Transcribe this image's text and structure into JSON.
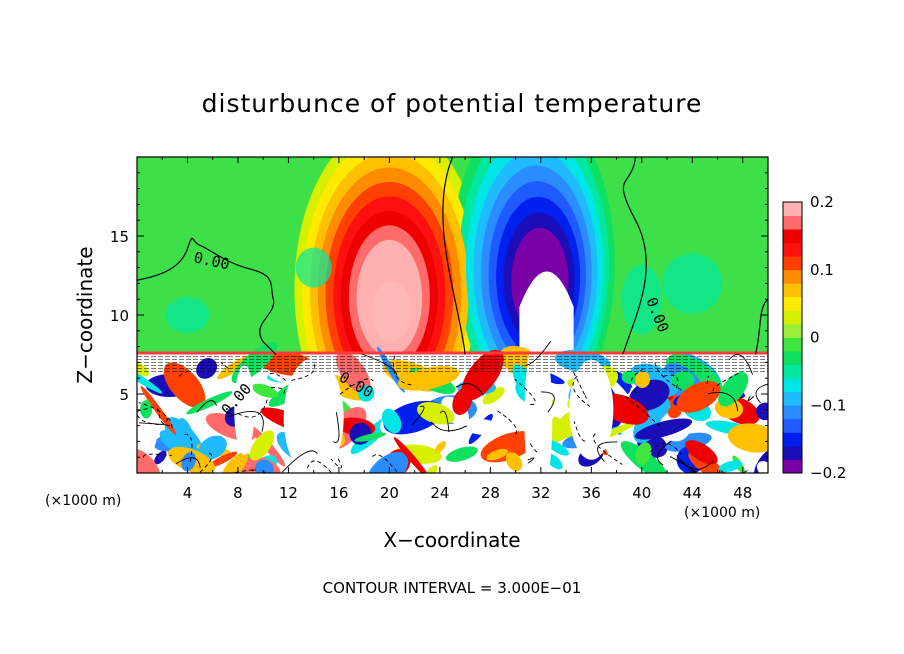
{
  "chart_data": {
    "type": "heatmap",
    "title": "disturbunce of potential temperature",
    "xlabel": "X−coordinate",
    "ylabel": "Z−coordinate",
    "x_unit_label": "(×1000 m)",
    "x_unit_label_right": "(×1000 m)",
    "xlim": [
      0,
      50
    ],
    "ylim": [
      0,
      20
    ],
    "x_ticks": [
      4,
      8,
      12,
      16,
      20,
      24,
      28,
      32,
      36,
      40,
      44,
      48
    ],
    "y_ticks": [
      5,
      10,
      15
    ],
    "footer": "CONTOUR INTERVAL = 3.000E−01",
    "colorbar": {
      "min": -0.2,
      "max": 0.2,
      "ticks": [
        0.2,
        0.1,
        0,
        -0.1,
        -0.2
      ],
      "tick_labels": [
        "0.2",
        "0.1",
        "0",
        "−0.1",
        "−0.2"
      ],
      "colors": [
        "#7a00a8",
        "#1b0db8",
        "#0020f0",
        "#1e5aff",
        "#2a8cff",
        "#20bbff",
        "#00e6e6",
        "#00e8a0",
        "#10e060",
        "#40e640",
        "#9cec3a",
        "#d6f000",
        "#ffea00",
        "#ffc000",
        "#ff8c00",
        "#ff4000",
        "#ff1010",
        "#ee0000",
        "#ff6a6a",
        "#ffb0b0"
      ]
    },
    "contour_labels": [
      "0.00",
      "0.00",
      "0.00",
      "0.00"
    ],
    "features": [
      {
        "kind": "warm_core",
        "x": 20,
        "z": 11,
        "peak": 0.2
      },
      {
        "kind": "cold_core",
        "x": 32,
        "z": 12,
        "peak": -0.2
      },
      {
        "kind": "turbulent_layer",
        "z_range": [
          0,
          7.5
        ]
      }
    ]
  }
}
